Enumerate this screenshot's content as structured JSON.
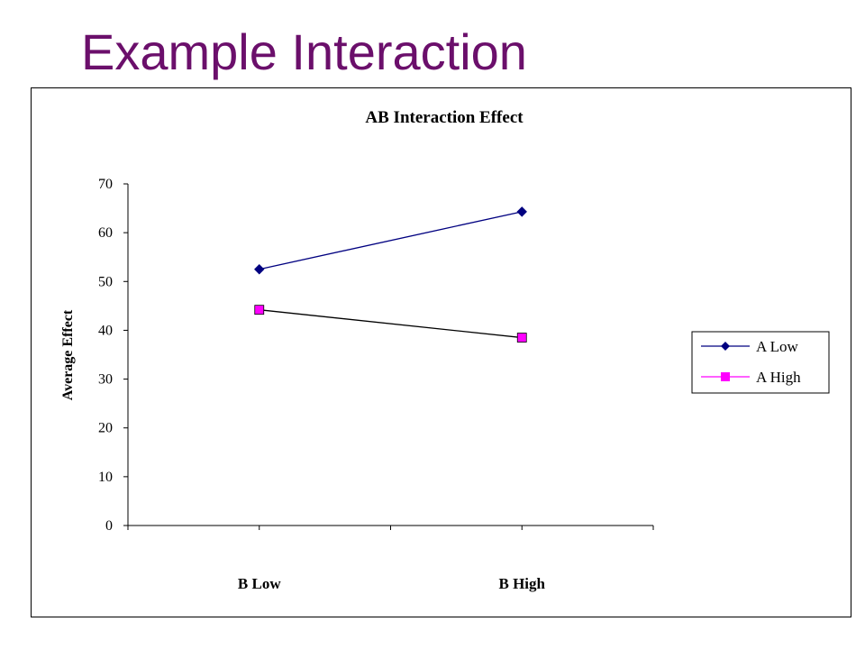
{
  "slide": {
    "title": "Example Interaction"
  },
  "chart_data": {
    "type": "line",
    "title": "AB Interaction Effect",
    "xlabel": "",
    "ylabel": "Average Effect",
    "categories": [
      "B Low",
      "B High"
    ],
    "series": [
      {
        "name": "A Low",
        "values": [
          52.5,
          64.3
        ],
        "color": "#000080",
        "marker": "diamond"
      },
      {
        "name": "A High",
        "values": [
          44.2,
          38.5
        ],
        "color": "#ff00ff",
        "marker": "square"
      }
    ],
    "ylim": [
      0,
      70
    ],
    "yticks": [
      0,
      10,
      20,
      30,
      40,
      50,
      60,
      70
    ],
    "ytick_labels": [
      "0",
      "10",
      "20",
      "30",
      "40",
      "50",
      "60",
      "70"
    ],
    "grid": false,
    "legend": "right"
  }
}
